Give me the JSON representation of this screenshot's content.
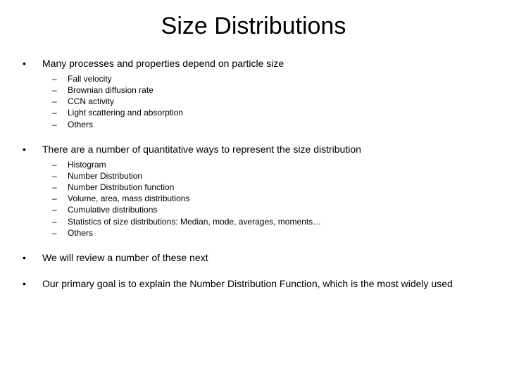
{
  "slide": {
    "title": "Size Distributions",
    "title_fontsize": 34,
    "body_fontsize": 14,
    "sub_fontsize": 12,
    "background_color": "#ffffff",
    "text_color": "#000000",
    "bullets": [
      {
        "text": "Many processes and properties depend on particle size",
        "subs": [
          "Fall velocity",
          "Brownian diffusion rate",
          "CCN activity",
          "Light scattering and absorption",
          "Others"
        ]
      },
      {
        "text": "There are a number of quantitative ways to represent the size distribution",
        "subs": [
          "Histogram",
          "Number Distribution",
          "Number Distribution function",
          "Volume, area, mass distributions",
          "Cumulative distributions",
          "Statistics of size distributions: Median, mode, averages, moments…",
          "Others"
        ]
      },
      {
        "text": "We will review a number of these next",
        "subs": []
      },
      {
        "text": "Our primary goal is to explain the Number Distribution Function, which is the most widely used",
        "subs": []
      }
    ],
    "bullet_marker": "•",
    "sub_marker": "–"
  }
}
